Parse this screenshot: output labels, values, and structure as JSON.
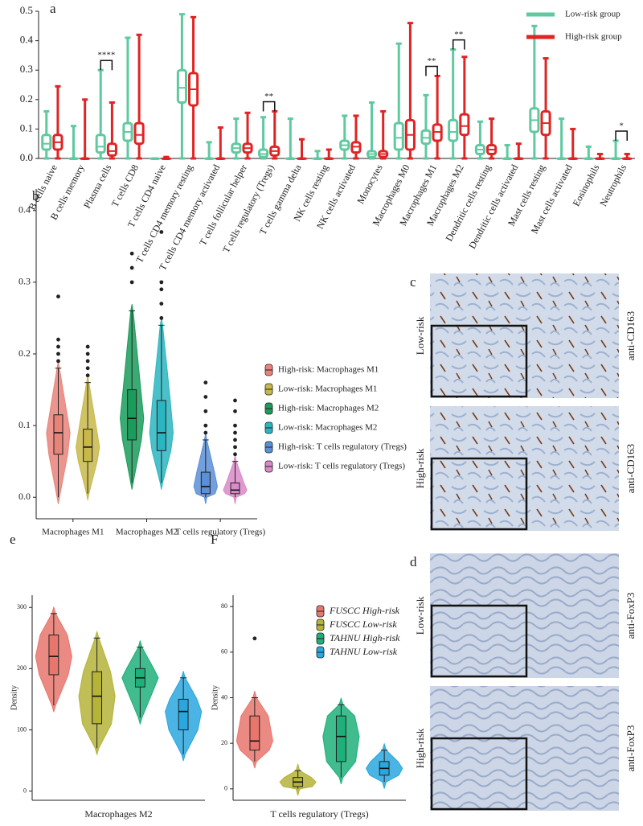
{
  "chart_data": [
    {
      "type": "box",
      "panel_label": "a",
      "categories": [
        "B cells naive",
        "B cells memory",
        "Plasma cells",
        "T cells CD8",
        "T cells CD4 naive",
        "T cells CD4 memory resting",
        "T cells CD4 memory activated",
        "T cells follicular helper",
        "T cells regulatory (Tregs)",
        "T cells gamma delta",
        "NK cells resting",
        "NK cells activated",
        "Monocytes",
        "Macrophages M0",
        "Macrophages M1",
        "Macrophages M2",
        "Dendritic cells resting",
        "Dendritic cells activated",
        "Mast cells resting",
        "Mast cells activated",
        "Eosinophils",
        "Neutrophils"
      ],
      "ylim": [
        0,
        0.5
      ],
      "yticks": [
        {
          "value": 0,
          "label": "0.0"
        },
        0.1,
        0.2,
        0.3,
        0.4,
        0.5
      ],
      "legend": "top-right",
      "series": [
        {
          "name": "Low-risk group",
          "color": "#5fc9a0",
          "boxes": [
            {
              "min": 0,
              "q1": 0.03,
              "median": 0.05,
              "q3": 0.08,
              "max": 0.16
            },
            {
              "min": 0,
              "q1": 0,
              "median": 0,
              "q3": 0,
              "max": 0.11
            },
            {
              "min": 0,
              "q1": 0.02,
              "median": 0.04,
              "q3": 0.08,
              "max": 0.3
            },
            {
              "min": 0,
              "q1": 0.06,
              "median": 0.09,
              "q3": 0.12,
              "max": 0.41
            },
            {
              "min": 0,
              "q1": 0,
              "median": 0,
              "q3": 0,
              "max": 0
            },
            {
              "min": 0,
              "q1": 0.19,
              "median": 0.24,
              "q3": 0.3,
              "max": 0.49
            },
            {
              "min": 0,
              "q1": 0,
              "median": 0,
              "q3": 0,
              "max": 0.055
            },
            {
              "min": 0,
              "q1": 0.02,
              "median": 0.035,
              "q3": 0.05,
              "max": 0.135
            },
            {
              "min": 0,
              "q1": 0.005,
              "median": 0.015,
              "q3": 0.03,
              "max": 0.14
            },
            {
              "min": 0,
              "q1": 0,
              "median": 0,
              "q3": 0,
              "max": 0.135
            },
            {
              "min": 0,
              "q1": 0,
              "median": 0,
              "q3": 0,
              "max": 0.025
            },
            {
              "min": 0,
              "q1": 0.03,
              "median": 0.045,
              "q3": 0.06,
              "max": 0.145
            },
            {
              "min": 0,
              "q1": 0.005,
              "median": 0.015,
              "q3": 0.025,
              "max": 0.19
            },
            {
              "min": 0,
              "q1": 0.03,
              "median": 0.07,
              "q3": 0.12,
              "max": 0.39
            },
            {
              "min": 0,
              "q1": 0.05,
              "median": 0.07,
              "q3": 0.095,
              "max": 0.215
            },
            {
              "min": 0,
              "q1": 0.06,
              "median": 0.09,
              "q3": 0.13,
              "max": 0.37
            },
            {
              "min": 0,
              "q1": 0.015,
              "median": 0.03,
              "q3": 0.045,
              "max": 0.125
            },
            {
              "min": 0,
              "q1": 0,
              "median": 0,
              "q3": 0,
              "max": 0.045
            },
            {
              "min": 0,
              "q1": 0.09,
              "median": 0.13,
              "q3": 0.17,
              "max": 0.45
            },
            {
              "min": 0,
              "q1": 0,
              "median": 0,
              "q3": 0,
              "max": 0.135
            },
            {
              "min": 0,
              "q1": 0,
              "median": 0,
              "q3": 0,
              "max": 0.04
            },
            {
              "min": 0,
              "q1": 0,
              "median": 0,
              "q3": 0,
              "max": 0.06
            }
          ]
        },
        {
          "name": "High-risk group",
          "color": "#e02424",
          "boxes": [
            {
              "min": 0,
              "q1": 0.03,
              "median": 0.055,
              "q3": 0.08,
              "max": 0.245
            },
            {
              "min": 0,
              "q1": 0,
              "median": 0,
              "q3": 0,
              "max": 0.2
            },
            {
              "min": 0,
              "q1": 0.01,
              "median": 0.025,
              "q3": 0.05,
              "max": 0.19
            },
            {
              "min": 0,
              "q1": 0.05,
              "median": 0.08,
              "q3": 0.12,
              "max": 0.42
            },
            {
              "min": 0,
              "q1": 0,
              "median": 0,
              "q3": 0,
              "max": 0.005
            },
            {
              "min": 0,
              "q1": 0.18,
              "median": 0.235,
              "q3": 0.29,
              "max": 0.48
            },
            {
              "min": 0,
              "q1": 0,
              "median": 0,
              "q3": 0,
              "max": 0.105
            },
            {
              "min": 0,
              "q1": 0.02,
              "median": 0.035,
              "q3": 0.05,
              "max": 0.155
            },
            {
              "min": 0,
              "q1": 0.01,
              "median": 0.025,
              "q3": 0.04,
              "max": 0.16
            },
            {
              "min": 0,
              "q1": 0,
              "median": 0,
              "q3": 0,
              "max": 0.065
            },
            {
              "min": 0,
              "q1": 0,
              "median": 0,
              "q3": 0,
              "max": 0.03
            },
            {
              "min": 0,
              "q1": 0.02,
              "median": 0.04,
              "q3": 0.055,
              "max": 0.145
            },
            {
              "min": 0,
              "q1": 0.005,
              "median": 0.015,
              "q3": 0.025,
              "max": 0.16
            },
            {
              "min": 0,
              "q1": 0.03,
              "median": 0.08,
              "q3": 0.13,
              "max": 0.46
            },
            {
              "min": 0,
              "q1": 0.06,
              "median": 0.09,
              "q3": 0.115,
              "max": 0.28
            },
            {
              "min": 0,
              "q1": 0.08,
              "median": 0.11,
              "q3": 0.15,
              "max": 0.345
            },
            {
              "min": 0,
              "q1": 0.015,
              "median": 0.03,
              "q3": 0.045,
              "max": 0.135
            },
            {
              "min": 0,
              "q1": 0,
              "median": 0,
              "q3": 0,
              "max": 0.05
            },
            {
              "min": 0,
              "q1": 0.08,
              "median": 0.12,
              "q3": 0.16,
              "max": 0.34
            },
            {
              "min": 0,
              "q1": 0,
              "median": 0,
              "q3": 0,
              "max": 0.1
            },
            {
              "min": 0,
              "q1": 0,
              "median": 0,
              "q3": 0,
              "max": 0.015
            },
            {
              "min": 0,
              "q1": 0,
              "median": 0,
              "q3": 0,
              "max": 0.015
            }
          ]
        }
      ],
      "annotations": [
        {
          "category": "Plasma cells",
          "label": "****"
        },
        {
          "category": "T cells regulatory (Tregs)",
          "label": "**"
        },
        {
          "category": "Macrophages M1",
          "label": "**"
        },
        {
          "category": "Macrophages M2",
          "label": "**"
        },
        {
          "category": "Neutrophils",
          "label": "*"
        }
      ]
    },
    {
      "type": "violin-box",
      "panel_label": "b",
      "categories": [
        "Macrophages M1",
        "Macrophages M2",
        "T cells regulatory (Tregs)"
      ],
      "ylim": [
        -0.03,
        0.43
      ],
      "yticks": [
        {
          "value": 0,
          "label": "0.0"
        },
        0.1,
        0.2,
        0.3,
        0.4
      ],
      "legend": "right",
      "series": [
        {
          "name": "High-risk: Macrophages M1",
          "color": "#e8837a",
          "category": "Macrophages M1",
          "box": {
            "min": 0,
            "q1": 0.06,
            "median": 0.09,
            "q3": 0.115,
            "max": 0.18
          },
          "outliers": [
            0.19,
            0.2,
            0.21,
            0.22,
            0.28
          ]
        },
        {
          "name": "Low-risk: Macrophages M1",
          "color": "#c8b84a",
          "category": "Macrophages M1",
          "box": {
            "min": 0.005,
            "q1": 0.05,
            "median": 0.07,
            "q3": 0.095,
            "max": 0.16
          },
          "outliers": [
            0.17,
            0.18,
            0.19,
            0.2,
            0.21
          ]
        },
        {
          "name": "High-risk: Macrophages M2",
          "color": "#1a9c5a",
          "category": "Macrophages M2",
          "box": {
            "min": 0.02,
            "q1": 0.08,
            "median": 0.11,
            "q3": 0.15,
            "max": 0.26
          },
          "outliers": [
            0.3,
            0.32,
            0.34
          ]
        },
        {
          "name": "Low-risk: Macrophages M2",
          "color": "#2ab5c0",
          "category": "Macrophages M2",
          "box": {
            "min": 0.02,
            "q1": 0.065,
            "median": 0.09,
            "q3": 0.135,
            "max": 0.24
          },
          "outliers": [
            0.25,
            0.27,
            0.29,
            0.3,
            0.37
          ]
        },
        {
          "name": "High-risk: T cells regulatory (Tregs)",
          "color": "#5b8fd6",
          "category": "T cells regulatory (Tregs)",
          "box": {
            "min": 0,
            "q1": 0.005,
            "median": 0.015,
            "q3": 0.035,
            "max": 0.08
          },
          "outliers": [
            0.09,
            0.1,
            0.12,
            0.14,
            0.16
          ]
        },
        {
          "name": "Low-risk: T cells regulatory (Tregs)",
          "color": "#d98ac8",
          "category": "T cells regulatory (Tregs)",
          "box": {
            "min": 0,
            "q1": 0.005,
            "median": 0.01,
            "q3": 0.02,
            "max": 0.05
          },
          "outliers": [
            0.06,
            0.07,
            0.08,
            0.09,
            0.1,
            0.12,
            0.135
          ]
        }
      ]
    },
    {
      "type": "violin-box",
      "panel_label": "e",
      "y_label": "Density",
      "x_label": "Macrophages M2",
      "ylim": [
        -15,
        320
      ],
      "yticks": [
        0,
        100,
        200,
        300
      ],
      "series": [
        {
          "color": "#e8766d",
          "box": {
            "min": 140,
            "q1": 190,
            "median": 220,
            "q3": 255,
            "max": 290
          }
        },
        {
          "color": "#b5b338",
          "box": {
            "min": 70,
            "q1": 110,
            "median": 155,
            "q3": 195,
            "max": 250
          }
        },
        {
          "color": "#1eb07a",
          "box": {
            "min": 120,
            "q1": 170,
            "median": 185,
            "q3": 200,
            "max": 235
          }
        },
        {
          "color": "#2aa7df",
          "box": {
            "min": 60,
            "q1": 100,
            "median": 130,
            "q3": 150,
            "max": 185
          }
        }
      ]
    },
    {
      "type": "violin-box",
      "panel_label": "F",
      "y_label": "Density",
      "x_label": "T cells regulatory (Tregs)",
      "ylim": [
        -5,
        85
      ],
      "yticks": [
        0,
        20,
        40,
        60,
        80
      ],
      "legend": "top-right",
      "series": [
        {
          "name": "FUSCC High-risk",
          "color": "#e8766d",
          "box": {
            "min": 12,
            "q1": 17,
            "median": 21,
            "q3": 32,
            "max": 40
          },
          "outliers": [
            66
          ]
        },
        {
          "name": "FUSCC Low-risk",
          "color": "#b5b338",
          "box": {
            "min": 0,
            "q1": 1,
            "median": 3,
            "q3": 5,
            "max": 8
          }
        },
        {
          "name": "TAHNU High-risk",
          "color": "#1eb07a",
          "box": {
            "min": 5,
            "q1": 12,
            "median": 23,
            "q3": 32,
            "max": 37
          }
        },
        {
          "name": "TAHNU Low-risk",
          "color": "#2aa7df",
          "box": {
            "min": 3,
            "q1": 6,
            "median": 9,
            "q3": 12,
            "max": 17
          }
        }
      ]
    }
  ],
  "images": [
    {
      "panel_label": "c",
      "rows": [
        {
          "group": "Low-risk",
          "stain": "anti-CD163"
        },
        {
          "group": "High-risk",
          "stain": "anti-CD163"
        }
      ]
    },
    {
      "panel_label": "d",
      "rows": [
        {
          "group": "Low-risk",
          "stain": "anti-FoxP3"
        },
        {
          "group": "High-risk",
          "stain": "anti-FoxP3"
        }
      ]
    }
  ]
}
